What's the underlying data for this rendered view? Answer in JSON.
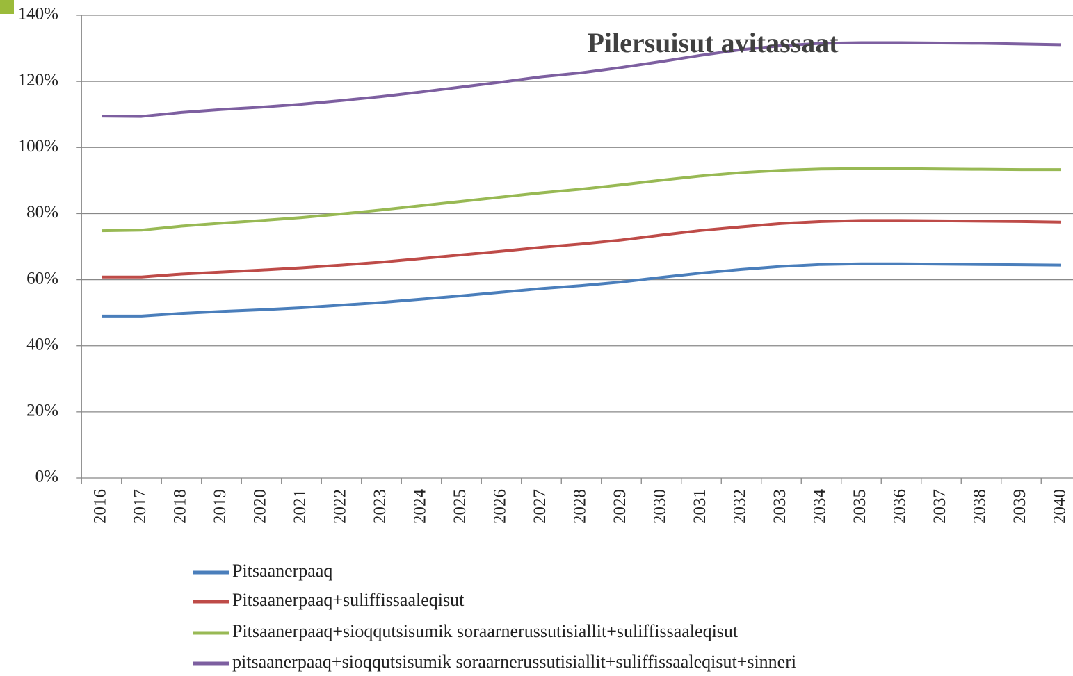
{
  "chart_data": {
    "type": "line",
    "title": "Pilersuisut avitassaat",
    "categories": [
      "2016",
      "2017",
      "2018",
      "2019",
      "2020",
      "2021",
      "2022",
      "2023",
      "2024",
      "2025",
      "2026",
      "2027",
      "2028",
      "2029",
      "2030",
      "2031",
      "2032",
      "2033",
      "2034",
      "2035",
      "2036",
      "2037",
      "2038",
      "2039",
      "2040"
    ],
    "series": [
      {
        "name": "Pitsaanerpaaq",
        "color": "#4a7ebb",
        "values": [
          49,
          49,
          49.8,
          50.4,
          50.9,
          51.5,
          52.3,
          53.1,
          54.1,
          55.1,
          56.2,
          57.3,
          58.2,
          59.3,
          60.7,
          62,
          63.1,
          64,
          64.6,
          64.8,
          64.8,
          64.7,
          64.6,
          64.5,
          64.4
        ]
      },
      {
        "name": "Pitsaanerpaaq+suliffissaaleqisut",
        "color": "#be4b48",
        "values": [
          60.8,
          60.8,
          61.7,
          62.3,
          62.9,
          63.6,
          64.4,
          65.3,
          66.4,
          67.5,
          68.6,
          69.8,
          70.8,
          72,
          73.5,
          74.9,
          76,
          77,
          77.6,
          77.9,
          77.9,
          77.8,
          77.7,
          77.6,
          77.4
        ]
      },
      {
        "name": "Pitsaanerpaaq+sioqqutsisumik soraarnerussutisiallit+suliffissaaleqisut",
        "color": "#98b954",
        "values": [
          74.8,
          75,
          76.2,
          77.1,
          77.9,
          78.8,
          79.9,
          81.1,
          82.4,
          83.7,
          85,
          86.3,
          87.4,
          88.7,
          90.1,
          91.4,
          92.4,
          93.1,
          93.5,
          93.6,
          93.6,
          93.5,
          93.4,
          93.3,
          93.3
        ]
      },
      {
        "name": "pitsaanerpaaq+sioqqutsisumik soraarnerussutisiallit+suliffissaaleqisut+sinneri",
        "color": "#7d5fa0",
        "values": [
          109.5,
          109.4,
          110.6,
          111.5,
          112.2,
          113.1,
          114.2,
          115.4,
          116.8,
          118.3,
          119.8,
          121.4,
          122.6,
          124.2,
          126,
          127.9,
          129.6,
          130.8,
          131.5,
          131.7,
          131.7,
          131.6,
          131.5,
          131.3,
          131.1
        ]
      }
    ],
    "ylim": [
      0,
      140
    ],
    "yticks": [
      {
        "value": 0,
        "label": "0%"
      },
      {
        "value": 20,
        "label": "20%"
      },
      {
        "value": 40,
        "label": "40%"
      },
      {
        "value": 60,
        "label": "60%"
      },
      {
        "value": 80,
        "label": "80%"
      },
      {
        "value": 100,
        "label": "100%"
      },
      {
        "value": 120,
        "label": "120%"
      },
      {
        "value": 140,
        "label": "140%"
      }
    ],
    "grid": true,
    "legend": "bottom"
  }
}
